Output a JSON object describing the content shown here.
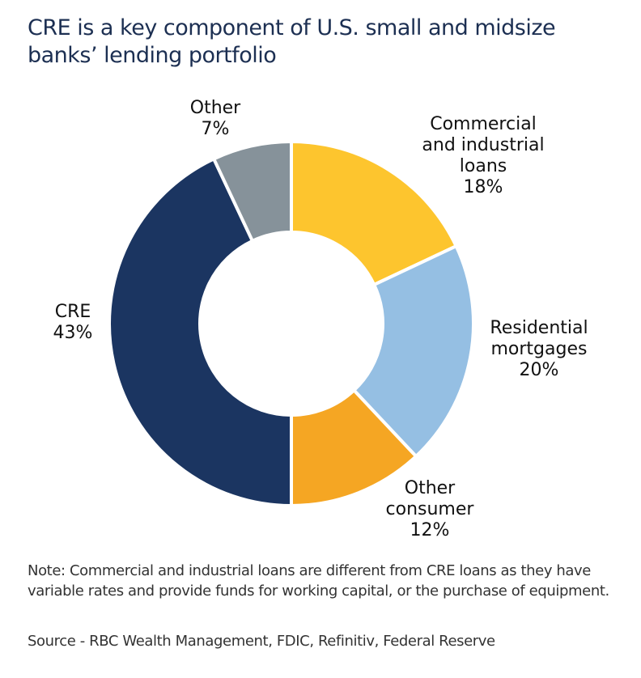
{
  "chart_data": {
    "type": "pie",
    "variant": "donut",
    "title": "CRE is a key component of U.S. small and midsize banks’ lending portfolio",
    "start": "12 o'clock",
    "direction": "clockwise",
    "slices": [
      {
        "name": "Commercial and industrial loans",
        "label_lines": [
          "Commercial",
          "and industrial",
          "loans",
          "18%"
        ],
        "value": 18,
        "color": "#FDC52E"
      },
      {
        "name": "Residential mortgages",
        "label_lines": [
          "Residential",
          "mortgages",
          "20%"
        ],
        "value": 20,
        "color": "#95BFE3"
      },
      {
        "name": "Other consumer",
        "label_lines": [
          "Other",
          "consumer",
          "12%"
        ],
        "value": 12,
        "color": "#F5A623"
      },
      {
        "name": "CRE",
        "label_lines": [
          "CRE",
          "43%"
        ],
        "value": 43,
        "color": "#1B3561"
      },
      {
        "name": "Other",
        "label_lines": [
          "Other",
          "7%"
        ],
        "value": 7,
        "color": "#86929A"
      }
    ],
    "unit": "%"
  },
  "title": "CRE is a key component of U.S. small and midsize banks’ lending portfolio",
  "note": "Note: Commercial and industrial loans are different from CRE loans as they have variable rates and provide funds for working capital, or the purchase of equipment.",
  "source": "Source - RBC Wealth Management, FDIC, Refinitiv, Federal Reserve"
}
